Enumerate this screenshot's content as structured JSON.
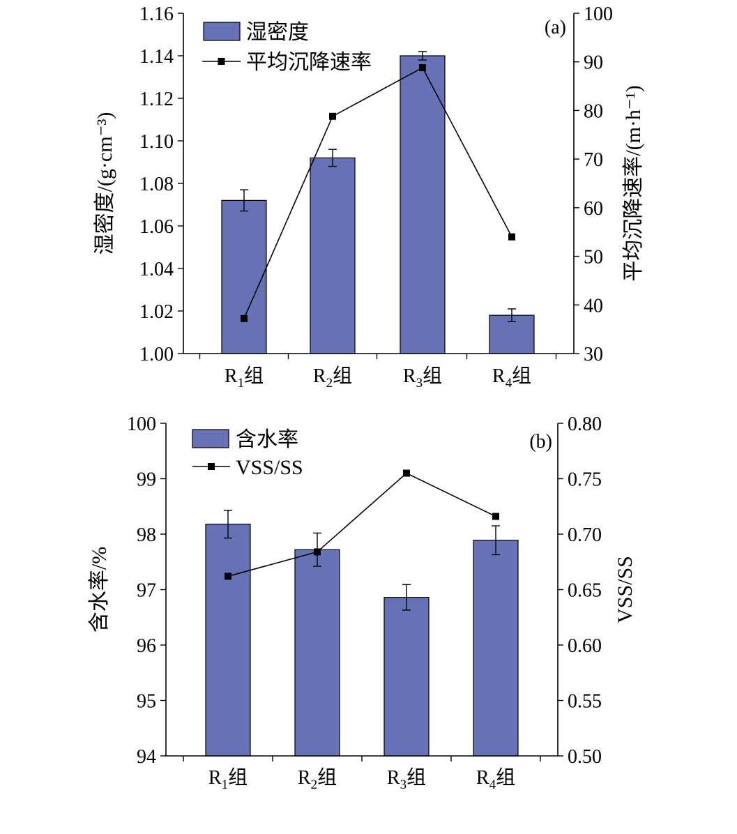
{
  "chart_data": [
    {
      "type": "bar",
      "panel_label": "(a)",
      "categories": [
        {
          "base": "R",
          "sub": "1",
          "suffix": "组"
        },
        {
          "base": "R",
          "sub": "2",
          "suffix": "组"
        },
        {
          "base": "R",
          "sub": "3",
          "suffix": "组"
        },
        {
          "base": "R",
          "sub": "4",
          "suffix": "组"
        }
      ],
      "left_axis": {
        "label": "湿密度/(g·cm⁻³)",
        "ylim": [
          1.0,
          1.16
        ],
        "ticks": [
          "1.00",
          "1.02",
          "1.04",
          "1.06",
          "1.08",
          "1.10",
          "1.12",
          "1.14",
          "1.16"
        ]
      },
      "right_axis": {
        "label": "平均沉降速率/(m·h⁻¹)",
        "ylim": [
          30,
          100
        ],
        "ticks": [
          "30",
          "40",
          "50",
          "60",
          "70",
          "80",
          "90",
          "100"
        ]
      },
      "series": [
        {
          "name": "湿密度",
          "kind": "bar",
          "axis": "left",
          "color": "#6672b5",
          "values": [
            1.072,
            1.092,
            1.14,
            1.018
          ],
          "errors": [
            0.005,
            0.004,
            0.002,
            0.003
          ]
        },
        {
          "name": "平均沉降速率",
          "kind": "line",
          "axis": "right",
          "color": "#000000",
          "values": [
            37.2,
            78.8,
            88.8,
            54.0
          ]
        }
      ],
      "legend": "top-left"
    },
    {
      "type": "bar",
      "panel_label": "(b)",
      "categories": [
        {
          "base": "R",
          "sub": "1",
          "suffix": "组"
        },
        {
          "base": "R",
          "sub": "2",
          "suffix": "组"
        },
        {
          "base": "R",
          "sub": "3",
          "suffix": "组"
        },
        {
          "base": "R",
          "sub": "4",
          "suffix": "组"
        }
      ],
      "left_axis": {
        "label": "含水率/%",
        "ylim": [
          94,
          100
        ],
        "ticks": [
          "94",
          "95",
          "96",
          "97",
          "98",
          "99",
          "100"
        ]
      },
      "right_axis": {
        "label": "VSS/SS",
        "ylim": [
          0.5,
          0.8
        ],
        "ticks": [
          "0.50",
          "0.55",
          "0.60",
          "0.65",
          "0.70",
          "0.75",
          "0.80"
        ]
      },
      "series": [
        {
          "name": "含水率",
          "kind": "bar",
          "axis": "left",
          "color": "#6672b5",
          "values": [
            98.18,
            97.72,
            96.86,
            97.89
          ],
          "errors": [
            0.25,
            0.3,
            0.23,
            0.26
          ]
        },
        {
          "name": "VSS/SS",
          "kind": "line",
          "axis": "right",
          "color": "#000000",
          "values": [
            0.662,
            0.684,
            0.755,
            0.716
          ]
        }
      ],
      "legend": "top-left"
    }
  ]
}
